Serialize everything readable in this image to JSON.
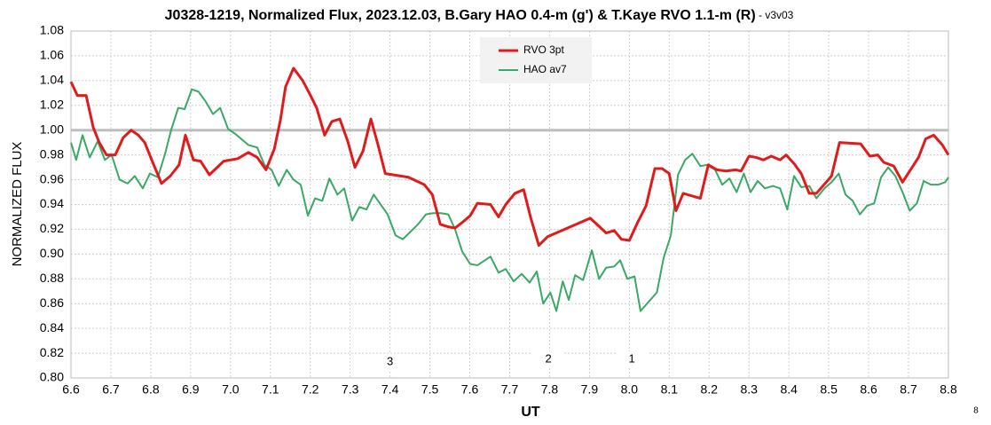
{
  "chart_data": {
    "type": "line",
    "title": "J0328-1219, Normalized Flux, 2023.12.03, B.Gary HAO 0.4-m (g') & T.Kaye RVO 1.1-m (R)",
    "version": " - v3v03",
    "x_label": "UT",
    "y_label": "NORMALIZED FLUX",
    "corner_note": "8",
    "xlim": [
      6.6,
      8.8
    ],
    "ylim": [
      0.8,
      1.08
    ],
    "xticks": [
      6.6,
      6.7,
      6.8,
      6.9,
      {
        "value": 7,
        "label": "7.0"
      },
      7.1,
      7.2,
      7.3,
      7.4,
      7.5,
      7.6,
      7.7,
      7.8,
      7.9,
      {
        "value": 8,
        "label": "8.0"
      },
      8.1,
      8.2,
      8.3,
      8.4,
      8.5,
      8.6,
      8.7,
      8.8
    ],
    "yticks": [
      {
        "value": 0.8,
        "label": "0.80"
      },
      {
        "value": 0.82,
        "label": "0.82"
      },
      {
        "value": 0.84,
        "label": "0.84"
      },
      {
        "value": 0.86,
        "label": "0.86"
      },
      {
        "value": 0.88,
        "label": "0.88"
      },
      {
        "value": 0.9,
        "label": "0.90"
      },
      {
        "value": 0.92,
        "label": "0.92"
      },
      {
        "value": 0.94,
        "label": "0.94"
      },
      {
        "value": 0.96,
        "label": "0.96"
      },
      {
        "value": 0.98,
        "label": "0.98"
      },
      {
        "value": 1,
        "label": "1.00"
      },
      {
        "value": 1.02,
        "label": "1.02"
      },
      {
        "value": 1.04,
        "label": "1.04"
      },
      {
        "value": 1.06,
        "label": "1.06"
      },
      {
        "value": 1.08,
        "label": "1.08"
      }
    ],
    "grid": true,
    "reference_line": 1,
    "reference_color": "#bdbdbd",
    "legend": "top-center",
    "annotations": [
      {
        "text": "3",
        "x": 7.4,
        "y": 0.813
      },
      {
        "text": "2",
        "x": 7.797,
        "y": 0.815
      },
      {
        "text": "1",
        "x": 8.006,
        "y": 0.815
      }
    ],
    "series": [
      {
        "name": "RVO 3pt",
        "color": "#e01b1b",
        "x": [
          6.6,
          6.616,
          6.638,
          6.656,
          6.671,
          6.689,
          6.711,
          6.731,
          6.751,
          6.769,
          6.785,
          6.805,
          6.827,
          6.849,
          6.871,
          6.887,
          6.907,
          6.925,
          6.947,
          6.983,
          7.018,
          7.045,
          7.067,
          7.089,
          7.11,
          7.125,
          7.138,
          7.158,
          7.181,
          7.199,
          7.216,
          7.236,
          7.254,
          7.274,
          7.294,
          7.312,
          7.332,
          7.352,
          7.37,
          7.388,
          7.446,
          7.486,
          7.506,
          7.526,
          7.546,
          7.563,
          7.583,
          7.601,
          7.619,
          7.652,
          7.672,
          7.69,
          7.713,
          7.735,
          7.753,
          7.773,
          7.795,
          7.902,
          7.942,
          7.962,
          7.98,
          8.0,
          8.02,
          8.042,
          8.064,
          8.082,
          8.1,
          8.117,
          8.135,
          8.178,
          8.198,
          8.22,
          8.242,
          8.267,
          8.28,
          8.3,
          8.318,
          8.336,
          8.356,
          8.378,
          8.393,
          8.413,
          8.431,
          8.451,
          8.469,
          8.507,
          8.527,
          8.58,
          8.603,
          8.623,
          8.638,
          8.663,
          8.685,
          8.725,
          8.743,
          8.763,
          8.785,
          8.8
        ],
        "values": [
          1.039,
          1.028,
          1.028,
          1.002,
          0.99,
          0.98,
          0.98,
          0.994,
          1.0,
          0.996,
          0.99,
          0.974,
          0.957,
          0.963,
          0.972,
          0.996,
          0.976,
          0.975,
          0.964,
          0.975,
          0.977,
          0.982,
          0.978,
          0.968,
          0.985,
          1.008,
          1.035,
          1.05,
          1.04,
          1.029,
          1.018,
          0.996,
          1.007,
          1.009,
          0.991,
          0.97,
          0.983,
          1.009,
          0.988,
          0.965,
          0.962,
          0.956,
          0.948,
          0.924,
          0.922,
          0.921,
          0.926,
          0.931,
          0.941,
          0.94,
          0.93,
          0.94,
          0.949,
          0.952,
          0.929,
          0.907,
          0.914,
          0.929,
          0.917,
          0.919,
          0.912,
          0.911,
          0.925,
          0.939,
          0.969,
          0.969,
          0.965,
          0.935,
          0.949,
          0.945,
          0.972,
          0.968,
          0.967,
          0.968,
          0.967,
          0.979,
          0.978,
          0.976,
          0.979,
          0.976,
          0.98,
          0.973,
          0.965,
          0.949,
          0.949,
          0.963,
          0.99,
          0.989,
          0.979,
          0.98,
          0.974,
          0.971,
          0.958,
          0.978,
          0.993,
          0.996,
          0.988,
          0.98
        ]
      },
      {
        "name": "HAO av7",
        "color": "#3aa866",
        "x": [
          6.6,
          6.613,
          6.629,
          6.647,
          6.667,
          6.685,
          6.702,
          6.722,
          6.742,
          6.76,
          6.78,
          6.798,
          6.818,
          6.836,
          6.851,
          6.869,
          6.885,
          6.903,
          6.92,
          6.938,
          6.956,
          6.974,
          6.994,
          7.012,
          7.045,
          7.067,
          7.085,
          7.103,
          7.121,
          7.141,
          7.158,
          7.176,
          7.194,
          7.212,
          7.23,
          7.248,
          7.268,
          7.285,
          7.305,
          7.323,
          7.341,
          7.359,
          7.394,
          7.414,
          7.432,
          7.47,
          7.49,
          7.508,
          7.528,
          7.546,
          7.563,
          7.581,
          7.601,
          7.619,
          7.652,
          7.672,
          7.69,
          7.71,
          7.73,
          7.75,
          7.768,
          7.784,
          7.802,
          7.817,
          7.833,
          7.848,
          7.864,
          7.884,
          7.906,
          7.924,
          7.942,
          7.962,
          7.977,
          7.995,
          8.013,
          8.028,
          8.069,
          8.086,
          8.104,
          8.122,
          8.14,
          8.158,
          8.178,
          8.195,
          8.215,
          8.233,
          8.251,
          8.269,
          8.287,
          8.304,
          8.322,
          8.34,
          8.36,
          8.378,
          8.396,
          8.413,
          8.431,
          8.451,
          8.469,
          8.489,
          8.507,
          8.525,
          8.542,
          8.56,
          8.578,
          8.596,
          8.614,
          8.631,
          8.649,
          8.667,
          8.685,
          8.703,
          8.721,
          8.738,
          8.756,
          8.774,
          8.792,
          8.8
        ],
        "values": [
          0.99,
          0.976,
          0.996,
          0.978,
          0.991,
          0.976,
          0.98,
          0.96,
          0.957,
          0.963,
          0.953,
          0.965,
          0.962,
          0.981,
          1.0,
          1.018,
          1.017,
          1.033,
          1.031,
          1.023,
          1.013,
          1.018,
          1.001,
          0.997,
          0.988,
          0.986,
          0.972,
          0.968,
          0.955,
          0.968,
          0.96,
          0.956,
          0.931,
          0.945,
          0.943,
          0.961,
          0.948,
          0.953,
          0.927,
          0.938,
          0.936,
          0.948,
          0.932,
          0.915,
          0.912,
          0.924,
          0.932,
          0.933,
          0.933,
          0.932,
          0.92,
          0.902,
          0.892,
          0.891,
          0.898,
          0.885,
          0.888,
          0.878,
          0.884,
          0.877,
          0.886,
          0.86,
          0.869,
          0.854,
          0.878,
          0.863,
          0.883,
          0.879,
          0.903,
          0.88,
          0.889,
          0.89,
          0.895,
          0.88,
          0.882,
          0.854,
          0.869,
          0.897,
          0.915,
          0.964,
          0.976,
          0.981,
          0.971,
          0.972,
          0.968,
          0.956,
          0.961,
          0.95,
          0.965,
          0.95,
          0.959,
          0.953,
          0.955,
          0.953,
          0.936,
          0.963,
          0.954,
          0.955,
          0.945,
          0.953,
          0.958,
          0.965,
          0.948,
          0.943,
          0.932,
          0.939,
          0.941,
          0.962,
          0.97,
          0.963,
          0.95,
          0.935,
          0.941,
          0.959,
          0.956,
          0.956,
          0.958,
          0.962
        ]
      }
    ]
  }
}
